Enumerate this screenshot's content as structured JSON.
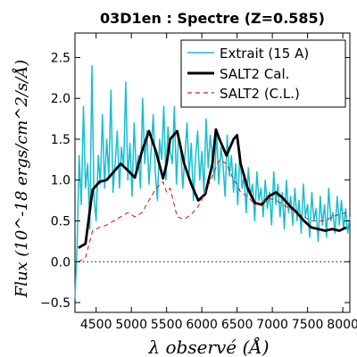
{
  "chart_data": {
    "type": "line",
    "title": "03D1en : Spectre (Z=0.585)",
    "xlabel": "λ observé (Å)",
    "ylabel": "Flux (10^-18 ergs/cm^2/s/Å)",
    "xlim": [
      4200,
      8100
    ],
    "ylim": [
      -0.62,
      2.8
    ],
    "x_ticks": [
      4500,
      5000,
      5500,
      6000,
      6500,
      7000,
      7500,
      8000
    ],
    "y_ticks": [
      -0.5,
      0.0,
      0.5,
      1.0,
      1.5,
      2.0,
      2.5
    ],
    "x_tick_labels": [
      "4500",
      "5000",
      "5500",
      "6000",
      "6500",
      "7000",
      "7500",
      "8000"
    ],
    "y_tick_labels": [
      "−0.5",
      "0.0",
      "0.5",
      "1.0",
      "1.5",
      "2.0",
      "2.5"
    ],
    "grid": false,
    "legend_position": "top-right",
    "reference_line": {
      "y": 0.0,
      "style": "dotted",
      "color": "#000000"
    },
    "series": [
      {
        "name": "Extrait (15 A)",
        "color": "#17becf",
        "style": "solid",
        "x": [
          4200,
          4230,
          4260,
          4290,
          4320,
          4350,
          4380,
          4410,
          4440,
          4470,
          4500,
          4530,
          4560,
          4590,
          4620,
          4650,
          4680,
          4710,
          4740,
          4770,
          4800,
          4830,
          4860,
          4890,
          4920,
          4950,
          4980,
          5010,
          5040,
          5070,
          5100,
          5130,
          5160,
          5190,
          5220,
          5250,
          5280,
          5310,
          5340,
          5370,
          5400,
          5430,
          5460,
          5490,
          5520,
          5550,
          5580,
          5610,
          5640,
          5670,
          5700,
          5730,
          5760,
          5790,
          5820,
          5850,
          5880,
          5910,
          5940,
          5970,
          6000,
          6030,
          6060,
          6090,
          6120,
          6150,
          6180,
          6210,
          6240,
          6270,
          6300,
          6330,
          6360,
          6390,
          6420,
          6450,
          6480,
          6510,
          6540,
          6570,
          6600,
          6630,
          6660,
          6690,
          6720,
          6750,
          6780,
          6810,
          6840,
          6870,
          6900,
          6930,
          6960,
          6990,
          7020,
          7050,
          7080,
          7110,
          7140,
          7170,
          7200,
          7230,
          7260,
          7290,
          7320,
          7350,
          7380,
          7410,
          7440,
          7470,
          7500,
          7530,
          7560,
          7590,
          7620,
          7650,
          7680,
          7710,
          7740,
          7770,
          7800,
          7830,
          7860,
          7890,
          7920,
          7950,
          7980,
          8010,
          8040,
          8070,
          8100
        ],
        "y": [
          -0.45,
          0.2,
          1.3,
          0.7,
          1.9,
          0.9,
          1.2,
          0.4,
          2.4,
          0.8,
          0.5,
          1.3,
          0.95,
          1.8,
          0.9,
          1.5,
          1.05,
          2.1,
          0.85,
          1.2,
          1.6,
          0.9,
          1.4,
          1.15,
          2.2,
          1.0,
          1.45,
          0.8,
          1.7,
          1.1,
          1.3,
          0.9,
          2.0,
          1.2,
          1.6,
          0.95,
          1.35,
          1.8,
          1.1,
          0.75,
          1.5,
          1.25,
          1.9,
          1.0,
          1.65,
          1.35,
          1.2,
          1.9,
          0.95,
          1.55,
          1.4,
          0.9,
          1.3,
          1.7,
          1.05,
          1.45,
          0.75,
          1.25,
          1.6,
          1.0,
          1.35,
          0.85,
          1.75,
          1.15,
          1.55,
          1.25,
          1.0,
          1.6,
          0.95,
          1.4,
          1.2,
          0.8,
          1.55,
          1.05,
          1.3,
          0.85,
          1.2,
          0.7,
          1.35,
          0.9,
          1.05,
          0.6,
          1.15,
          0.8,
          0.95,
          0.5,
          1.1,
          0.75,
          0.9,
          0.55,
          1.0,
          0.65,
          0.85,
          0.45,
          1.1,
          0.7,
          0.95,
          0.55,
          0.85,
          0.4,
          1.0,
          0.6,
          0.8,
          0.45,
          0.9,
          0.5,
          0.75,
          0.35,
          0.95,
          0.55,
          0.7,
          0.3,
          0.85,
          0.5,
          0.65,
          0.25,
          0.8,
          0.45,
          0.7,
          0.3,
          0.9,
          0.5,
          0.6,
          0.35,
          0.8,
          0.45,
          0.75,
          0.4,
          0.65,
          0.35,
          0.55
        ]
      },
      {
        "name": "SALT2 Cal.",
        "color": "#000000",
        "style": "solid",
        "x": [
          4250,
          4350,
          4450,
          4550,
          4650,
          4750,
          4850,
          4950,
          5050,
          5150,
          5250,
          5350,
          5450,
          5500,
          5550,
          5650,
          5750,
          5850,
          5950,
          6050,
          6150,
          6200,
          6250,
          6350,
          6450,
          6500,
          6550,
          6650,
          6750,
          6850,
          6950,
          7050,
          7150,
          7250,
          7350,
          7450,
          7550,
          7650,
          7750,
          7850,
          7950,
          8050
        ],
        "y": [
          0.17,
          0.22,
          0.88,
          0.98,
          1.0,
          1.1,
          1.2,
          1.12,
          1.03,
          1.35,
          1.6,
          1.35,
          1.02,
          1.2,
          1.5,
          1.6,
          1.2,
          0.95,
          0.75,
          0.83,
          1.2,
          1.62,
          1.5,
          1.3,
          1.5,
          1.55,
          1.2,
          0.9,
          0.72,
          0.7,
          0.8,
          0.85,
          0.78,
          0.68,
          0.6,
          0.5,
          0.42,
          0.4,
          0.38,
          0.4,
          0.38,
          0.42
        ]
      },
      {
        "name": "SALT2 (C.L.)",
        "color": "#e41a1c",
        "style": "dashed",
        "x": [
          4250,
          4350,
          4450,
          4550,
          4650,
          4750,
          4850,
          4950,
          5050,
          5150,
          5250,
          5350,
          5450,
          5500,
          5550,
          5650,
          5750,
          5850,
          5950,
          6050,
          6150,
          6250,
          6350,
          6450,
          6500,
          6550,
          6650,
          6750,
          6850,
          6950,
          7050,
          7150,
          7250,
          7350,
          7450,
          7550,
          7650,
          7750,
          7850,
          7950,
          8050
        ],
        "y": [
          0.0,
          0.05,
          0.38,
          0.42,
          0.45,
          0.5,
          0.55,
          0.6,
          0.55,
          0.6,
          0.75,
          0.9,
          0.98,
          0.85,
          0.9,
          0.55,
          0.52,
          0.58,
          0.68,
          0.85,
          1.05,
          1.25,
          1.2,
          1.0,
          0.95,
          0.85,
          0.8,
          0.7,
          0.72,
          0.78,
          0.75,
          0.7,
          0.65,
          0.6,
          0.55,
          0.5,
          0.5,
          0.5,
          0.55,
          0.58,
          0.6
        ]
      }
    ]
  }
}
